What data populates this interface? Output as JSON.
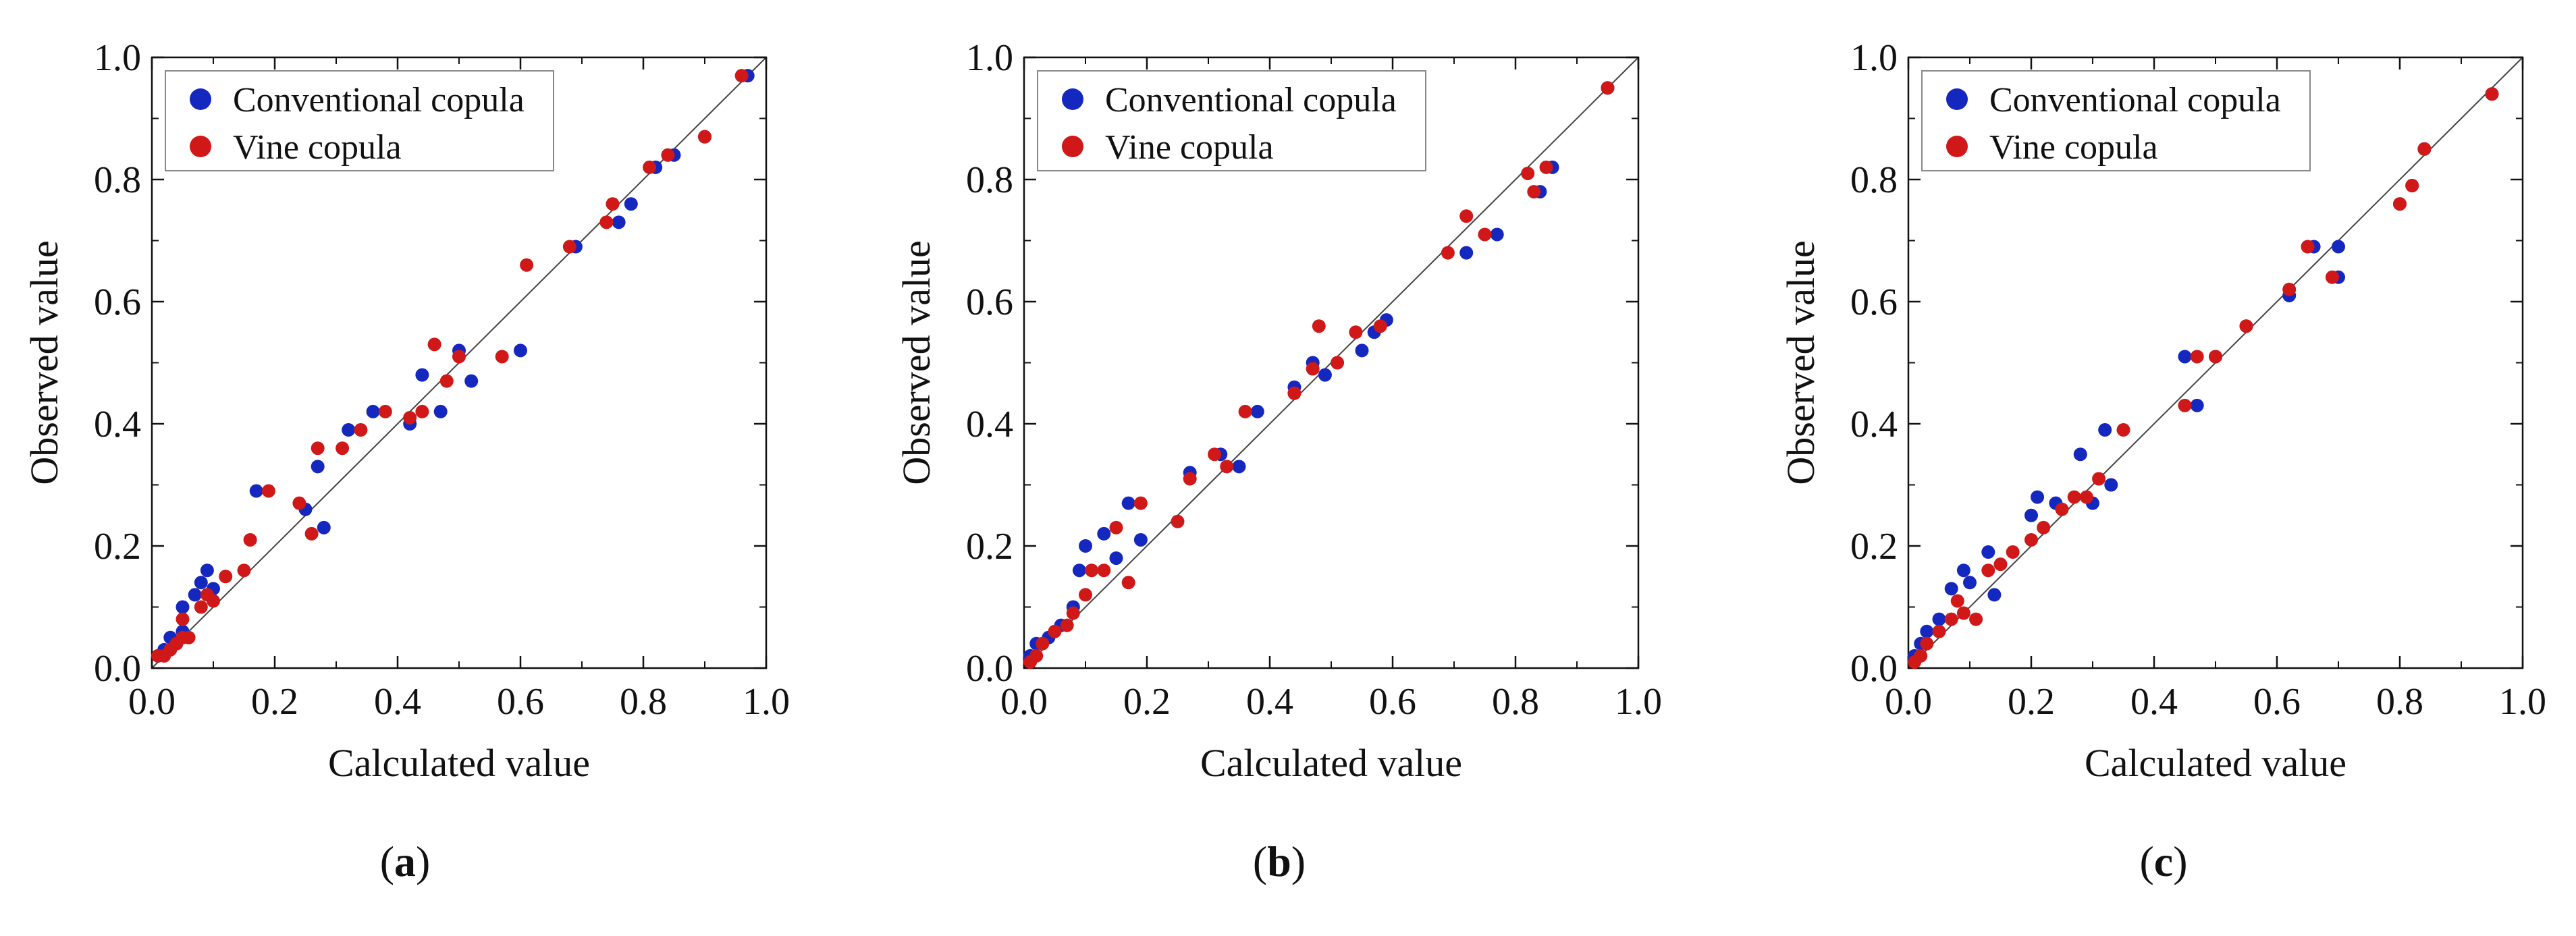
{
  "chart_data": [
    {
      "type": "scatter",
      "panel_label": "a",
      "xlabel": "Calculated value",
      "ylabel": "Observed value",
      "xlim": [
        0.0,
        1.0
      ],
      "ylim": [
        0.0,
        1.0
      ],
      "xticks": [
        "0.0",
        "0.2",
        "0.4",
        "0.6",
        "0.8",
        "1.0"
      ],
      "yticks": [
        "0.0",
        "0.2",
        "0.4",
        "0.6",
        "0.8",
        "1.0"
      ],
      "legend_position": "top-left",
      "diagonal": "y = x",
      "series": [
        {
          "name": "Conventional copula",
          "color": "#1428c0",
          "points": [
            [
              0.01,
              0.02
            ],
            [
              0.02,
              0.03
            ],
            [
              0.03,
              0.05
            ],
            [
              0.04,
              0.04
            ],
            [
              0.05,
              0.06
            ],
            [
              0.05,
              0.1
            ],
            [
              0.07,
              0.12
            ],
            [
              0.08,
              0.14
            ],
            [
              0.09,
              0.16
            ],
            [
              0.1,
              0.13
            ],
            [
              0.17,
              0.29
            ],
            [
              0.25,
              0.26
            ],
            [
              0.27,
              0.33
            ],
            [
              0.28,
              0.23
            ],
            [
              0.32,
              0.39
            ],
            [
              0.36,
              0.42
            ],
            [
              0.42,
              0.4
            ],
            [
              0.44,
              0.48
            ],
            [
              0.47,
              0.42
            ],
            [
              0.5,
              0.52
            ],
            [
              0.52,
              0.47
            ],
            [
              0.6,
              0.52
            ],
            [
              0.69,
              0.69
            ],
            [
              0.76,
              0.73
            ],
            [
              0.78,
              0.76
            ],
            [
              0.82,
              0.82
            ],
            [
              0.85,
              0.84
            ],
            [
              0.9,
              0.87
            ],
            [
              0.97,
              0.97
            ]
          ]
        },
        {
          "name": "Vine copula",
          "color": "#d01818",
          "points": [
            [
              0.01,
              0.02
            ],
            [
              0.02,
              0.02
            ],
            [
              0.03,
              0.03
            ],
            [
              0.04,
              0.04
            ],
            [
              0.05,
              0.05
            ],
            [
              0.05,
              0.08
            ],
            [
              0.06,
              0.05
            ],
            [
              0.08,
              0.1
            ],
            [
              0.09,
              0.12
            ],
            [
              0.1,
              0.11
            ],
            [
              0.12,
              0.15
            ],
            [
              0.15,
              0.16
            ],
            [
              0.16,
              0.21
            ],
            [
              0.19,
              0.29
            ],
            [
              0.24,
              0.27
            ],
            [
              0.26,
              0.22
            ],
            [
              0.27,
              0.36
            ],
            [
              0.31,
              0.36
            ],
            [
              0.34,
              0.39
            ],
            [
              0.38,
              0.42
            ],
            [
              0.42,
              0.41
            ],
            [
              0.44,
              0.42
            ],
            [
              0.46,
              0.53
            ],
            [
              0.48,
              0.47
            ],
            [
              0.5,
              0.51
            ],
            [
              0.57,
              0.51
            ],
            [
              0.61,
              0.66
            ],
            [
              0.68,
              0.69
            ],
            [
              0.74,
              0.73
            ],
            [
              0.75,
              0.76
            ],
            [
              0.81,
              0.82
            ],
            [
              0.84,
              0.84
            ],
            [
              0.9,
              0.87
            ],
            [
              0.96,
              0.97
            ]
          ]
        }
      ]
    },
    {
      "type": "scatter",
      "panel_label": "b",
      "xlabel": "Calculated value",
      "ylabel": "Observed value",
      "xlim": [
        0.0,
        1.0
      ],
      "ylim": [
        0.0,
        1.0
      ],
      "xticks": [
        "0.0",
        "0.2",
        "0.4",
        "0.6",
        "0.8",
        "1.0"
      ],
      "yticks": [
        "0.0",
        "0.2",
        "0.4",
        "0.6",
        "0.8",
        "1.0"
      ],
      "legend_position": "top-left",
      "diagonal": "y = x",
      "series": [
        {
          "name": "Conventional copula",
          "color": "#1428c0",
          "points": [
            [
              0.01,
              0.02
            ],
            [
              0.02,
              0.04
            ],
            [
              0.04,
              0.05
            ],
            [
              0.06,
              0.07
            ],
            [
              0.08,
              0.1
            ],
            [
              0.09,
              0.16
            ],
            [
              0.1,
              0.2
            ],
            [
              0.13,
              0.22
            ],
            [
              0.15,
              0.18
            ],
            [
              0.17,
              0.27
            ],
            [
              0.19,
              0.21
            ],
            [
              0.27,
              0.32
            ],
            [
              0.32,
              0.35
            ],
            [
              0.35,
              0.33
            ],
            [
              0.38,
              0.42
            ],
            [
              0.44,
              0.46
            ],
            [
              0.47,
              0.5
            ],
            [
              0.49,
              0.48
            ],
            [
              0.55,
              0.52
            ],
            [
              0.57,
              0.55
            ],
            [
              0.59,
              0.57
            ],
            [
              0.72,
              0.68
            ],
            [
              0.77,
              0.71
            ],
            [
              0.84,
              0.78
            ],
            [
              0.86,
              0.82
            ],
            [
              0.95,
              0.95
            ]
          ]
        },
        {
          "name": "Vine copula",
          "color": "#d01818",
          "points": [
            [
              0.01,
              0.01
            ],
            [
              0.02,
              0.02
            ],
            [
              0.03,
              0.04
            ],
            [
              0.05,
              0.06
            ],
            [
              0.07,
              0.07
            ],
            [
              0.08,
              0.09
            ],
            [
              0.1,
              0.12
            ],
            [
              0.11,
              0.16
            ],
            [
              0.13,
              0.16
            ],
            [
              0.15,
              0.23
            ],
            [
              0.17,
              0.14
            ],
            [
              0.19,
              0.27
            ],
            [
              0.25,
              0.24
            ],
            [
              0.27,
              0.31
            ],
            [
              0.31,
              0.35
            ],
            [
              0.33,
              0.33
            ],
            [
              0.36,
              0.42
            ],
            [
              0.44,
              0.45
            ],
            [
              0.47,
              0.49
            ],
            [
              0.48,
              0.56
            ],
            [
              0.51,
              0.5
            ],
            [
              0.54,
              0.55
            ],
            [
              0.58,
              0.56
            ],
            [
              0.69,
              0.68
            ],
            [
              0.72,
              0.74
            ],
            [
              0.75,
              0.71
            ],
            [
              0.82,
              0.81
            ],
            [
              0.83,
              0.78
            ],
            [
              0.85,
              0.82
            ],
            [
              0.95,
              0.95
            ]
          ]
        }
      ]
    },
    {
      "type": "scatter",
      "panel_label": "c",
      "xlabel": "Calculated value",
      "ylabel": "Observed value",
      "xlim": [
        0.0,
        1.0
      ],
      "ylim": [
        0.0,
        1.0
      ],
      "xticks": [
        "0.0",
        "0.2",
        "0.4",
        "0.6",
        "0.8",
        "1.0"
      ],
      "yticks": [
        "0.0",
        "0.2",
        "0.4",
        "0.6",
        "0.8",
        "1.0"
      ],
      "legend_position": "top-left",
      "diagonal": "y = x",
      "series": [
        {
          "name": "Conventional copula",
          "color": "#1428c0",
          "points": [
            [
              0.01,
              0.02
            ],
            [
              0.02,
              0.04
            ],
            [
              0.03,
              0.06
            ],
            [
              0.05,
              0.08
            ],
            [
              0.07,
              0.13
            ],
            [
              0.09,
              0.16
            ],
            [
              0.1,
              0.14
            ],
            [
              0.13,
              0.19
            ],
            [
              0.14,
              0.12
            ],
            [
              0.2,
              0.25
            ],
            [
              0.21,
              0.28
            ],
            [
              0.24,
              0.27
            ],
            [
              0.28,
              0.35
            ],
            [
              0.3,
              0.27
            ],
            [
              0.32,
              0.39
            ],
            [
              0.33,
              0.3
            ],
            [
              0.45,
              0.51
            ],
            [
              0.47,
              0.43
            ],
            [
              0.5,
              0.51
            ],
            [
              0.55,
              0.56
            ],
            [
              0.62,
              0.61
            ],
            [
              0.66,
              0.69
            ],
            [
              0.7,
              0.69
            ],
            [
              0.7,
              0.64
            ],
            [
              0.8,
              0.76
            ],
            [
              0.82,
              0.79
            ],
            [
              0.84,
              0.85
            ],
            [
              0.95,
              0.94
            ]
          ]
        },
        {
          "name": "Vine copula",
          "color": "#d01818",
          "points": [
            [
              0.01,
              0.01
            ],
            [
              0.02,
              0.02
            ],
            [
              0.03,
              0.04
            ],
            [
              0.05,
              0.06
            ],
            [
              0.07,
              0.08
            ],
            [
              0.08,
              0.11
            ],
            [
              0.09,
              0.09
            ],
            [
              0.11,
              0.08
            ],
            [
              0.13,
              0.16
            ],
            [
              0.15,
              0.17
            ],
            [
              0.17,
              0.19
            ],
            [
              0.2,
              0.21
            ],
            [
              0.22,
              0.23
            ],
            [
              0.25,
              0.26
            ],
            [
              0.27,
              0.28
            ],
            [
              0.29,
              0.28
            ],
            [
              0.31,
              0.31
            ],
            [
              0.35,
              0.39
            ],
            [
              0.45,
              0.43
            ],
            [
              0.47,
              0.51
            ],
            [
              0.5,
              0.51
            ],
            [
              0.55,
              0.56
            ],
            [
              0.62,
              0.62
            ],
            [
              0.65,
              0.69
            ],
            [
              0.69,
              0.64
            ],
            [
              0.8,
              0.76
            ],
            [
              0.82,
              0.79
            ],
            [
              0.84,
              0.85
            ],
            [
              0.95,
              0.94
            ]
          ]
        }
      ]
    }
  ]
}
